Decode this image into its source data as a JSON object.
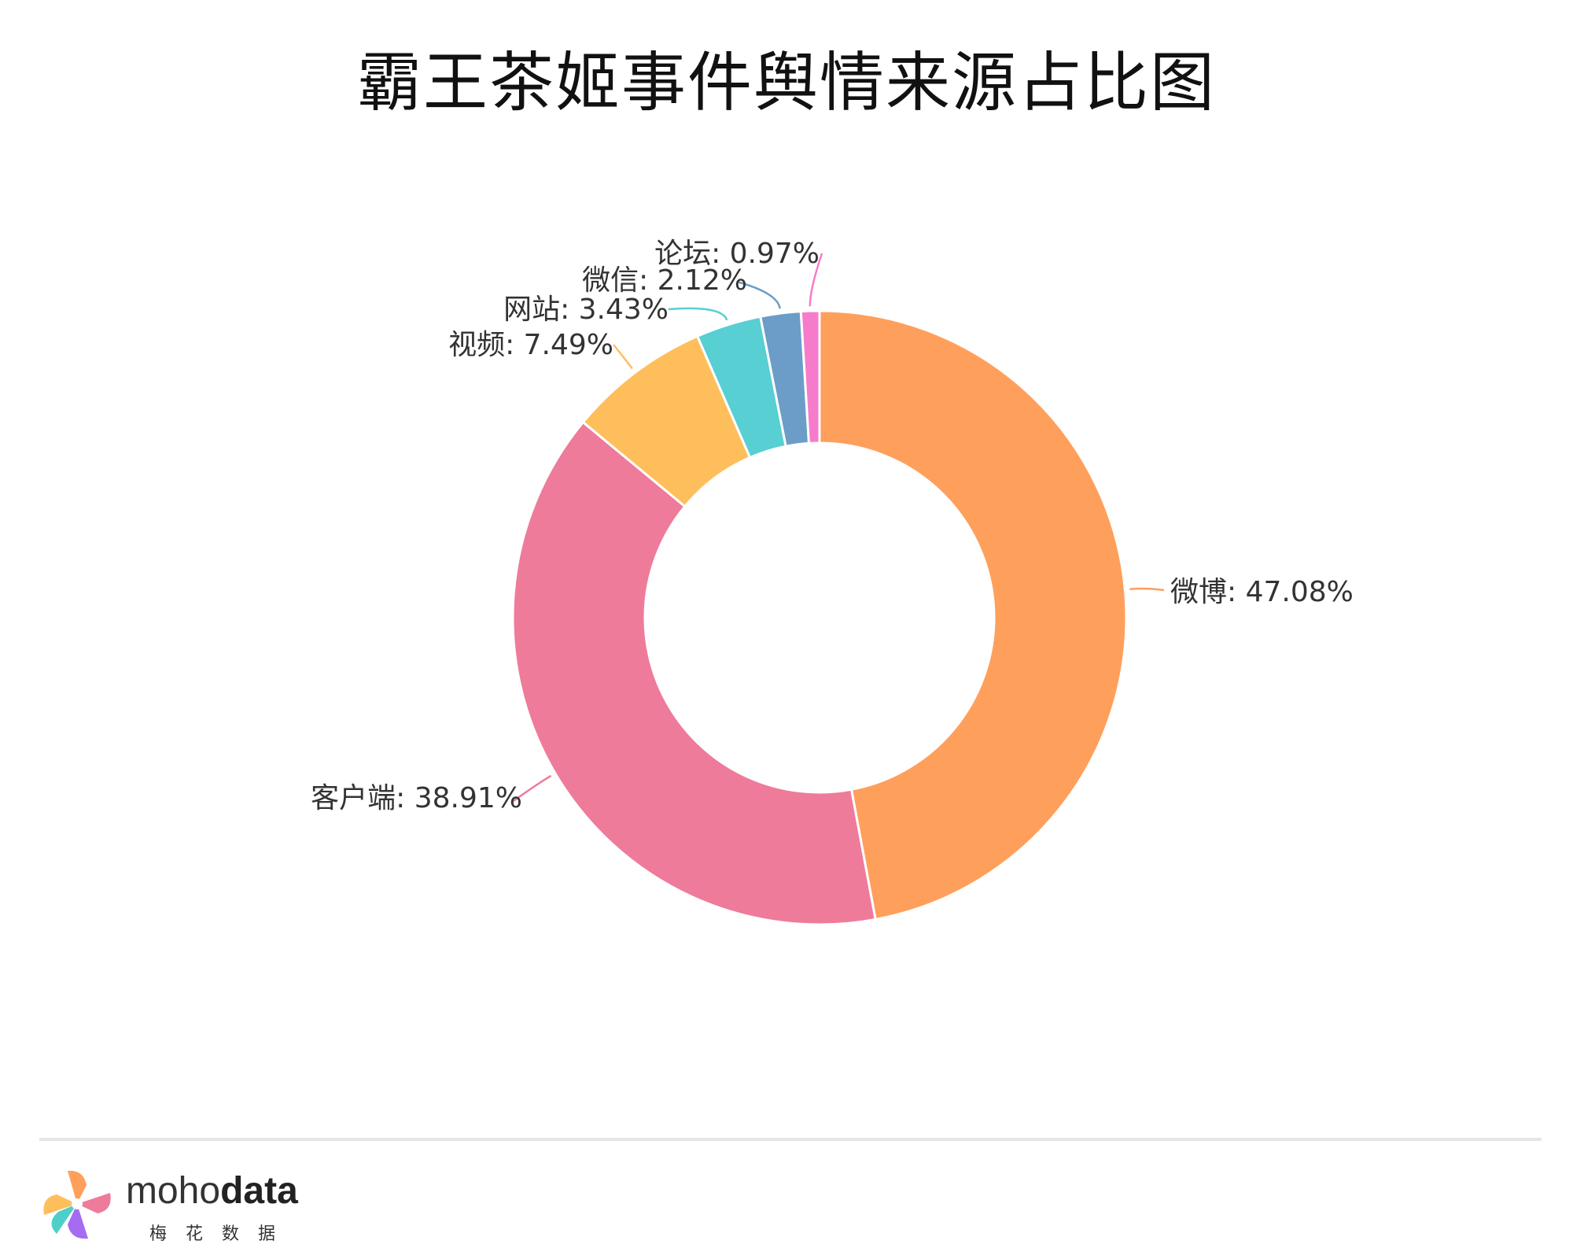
{
  "chart_data": {
    "type": "pie",
    "donut": true,
    "title": "霸王茶姬事件舆情来源占比图",
    "slices": [
      {
        "name": "微博",
        "value": 47.08,
        "label": "微博: 47.08%",
        "color": "#FF9F5C"
      },
      {
        "name": "客户端",
        "value": 38.91,
        "label": "客户端: 38.91%",
        "color": "#EE7B9A"
      },
      {
        "name": "视频",
        "value": 7.49,
        "label": "视频: 7.49%",
        "color": "#FFBE5C"
      },
      {
        "name": "网站",
        "value": 3.43,
        "label": "网站: 3.43%",
        "color": "#57CFD3"
      },
      {
        "name": "微信",
        "value": 2.12,
        "label": "微信: 2.12%",
        "color": "#6B9DC8"
      },
      {
        "name": "论坛",
        "value": 0.97,
        "label": "论坛: 0.97%",
        "color": "#F77BCB"
      }
    ]
  },
  "brand": {
    "name_light": "moho",
    "name_bold": "data",
    "subtitle": "梅花数据"
  }
}
